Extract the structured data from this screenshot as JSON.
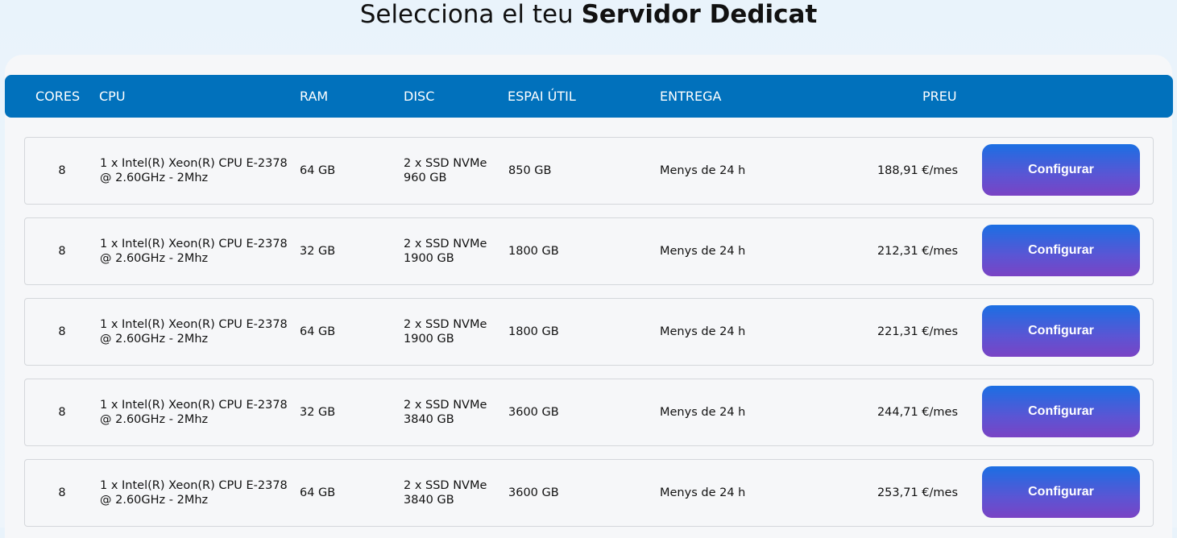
{
  "title": {
    "prefix": "Selecciona el teu",
    "emphasis": "Servidor Dedicat"
  },
  "table": {
    "headers": {
      "cores": "CORES",
      "cpu": "CPU",
      "ram": "RAM",
      "disc": "DISC",
      "space": "ESPAI ÚTIL",
      "delivery": "ENTREGA",
      "price": "PREU"
    },
    "rows": [
      {
        "cores": "8",
        "cpu": "1 x Intel(R) Xeon(R) CPU E-2378 @ 2.60GHz - 2Mhz",
        "ram": "64 GB",
        "disc": "2 x SSD NVMe 960 GB",
        "space": "850 GB",
        "delivery": "Menys de 24 h",
        "price": "188,91 €/mes",
        "button": "Configurar"
      },
      {
        "cores": "8",
        "cpu": "1 x Intel(R) Xeon(R) CPU E-2378 @ 2.60GHz - 2Mhz",
        "ram": "32 GB",
        "disc": "2 x SSD NVMe 1900 GB",
        "space": "1800 GB",
        "delivery": "Menys de 24 h",
        "price": "212,31 €/mes",
        "button": "Configurar"
      },
      {
        "cores": "8",
        "cpu": "1 x Intel(R) Xeon(R) CPU E-2378 @ 2.60GHz - 2Mhz",
        "ram": "64 GB",
        "disc": "2 x SSD NVMe 1900 GB",
        "space": "1800 GB",
        "delivery": "Menys de 24 h",
        "price": "221,31 €/mes",
        "button": "Configurar"
      },
      {
        "cores": "8",
        "cpu": "1 x Intel(R) Xeon(R) CPU E-2378 @ 2.60GHz - 2Mhz",
        "ram": "32 GB",
        "disc": "2 x SSD NVMe 3840 GB",
        "space": "3600 GB",
        "delivery": "Menys de 24 h",
        "price": "244,71 €/mes",
        "button": "Configurar"
      },
      {
        "cores": "8",
        "cpu": "1 x Intel(R) Xeon(R) CPU E-2378 @ 2.60GHz - 2Mhz",
        "ram": "64 GB",
        "disc": "2 x SSD NVMe 3840 GB",
        "space": "3600 GB",
        "delivery": "Menys de 24 h",
        "price": "253,71 €/mes",
        "button": "Configurar"
      }
    ]
  },
  "colors": {
    "header_bg": "#0171bc",
    "button_top": "#1b6fe3",
    "button_bottom": "#7a43c4"
  }
}
